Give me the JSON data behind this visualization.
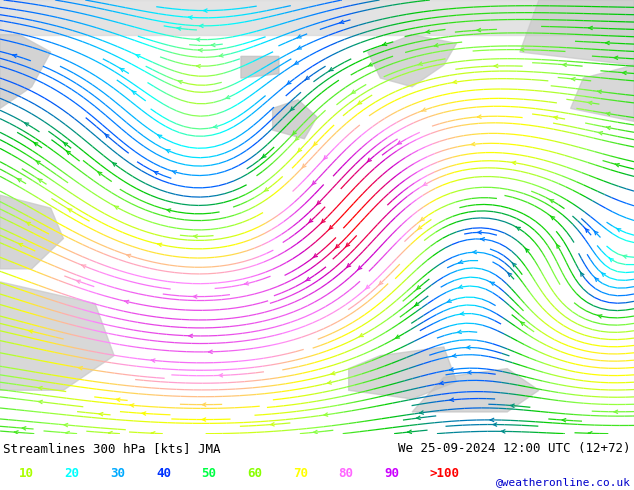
{
  "title_left": "Streamlines 300 hPa [kts] JMA",
  "title_right": "We 25-09-2024 12:00 UTC (12+72)",
  "credit": "@weatheronline.co.uk",
  "legend_values": [
    "10",
    "20",
    "30",
    "40",
    "50",
    "60",
    "70",
    "80",
    "90",
    ">100"
  ],
  "legend_colors": [
    "#aaff00",
    "#00ffff",
    "#00aaff",
    "#0000ff",
    "#00ff00",
    "#aaff00",
    "#ffff00",
    "#ff00ff",
    "#ff00ff",
    "#ff0000"
  ],
  "speed_colors": [
    "#adff2f",
    "#00ffff",
    "#00aaff",
    "#0055ff",
    "#00cc00",
    "#88ff00",
    "#ffff00",
    "#ff44ff",
    "#cc00cc",
    "#ff0000"
  ],
  "bg_color": "#ffffff",
  "map_bg_land": "#c8c8c8",
  "map_bg_sea": "#aaddaa",
  "fig_width": 6.34,
  "fig_height": 4.9,
  "dpi": 100,
  "title_fontsize": 9,
  "legend_fontsize": 9,
  "credit_fontsize": 8,
  "title_color": "#000000",
  "credit_color": "#0000cc"
}
